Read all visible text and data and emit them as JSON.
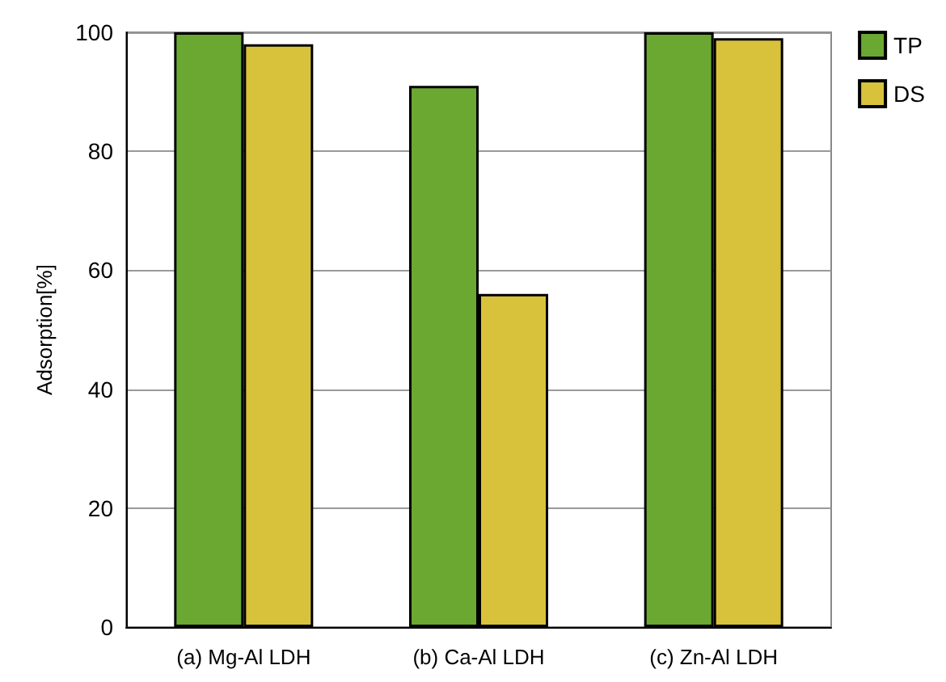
{
  "chart_data": {
    "type": "bar",
    "ylabel": "Adsorption[%]",
    "categories": [
      "(a) Mg-Al LDH",
      "(b) Ca-Al LDH",
      "(c) Zn-Al LDH"
    ],
    "series": [
      {
        "name": "TP",
        "color": "#6aa832",
        "values": [
          100,
          91,
          100
        ]
      },
      {
        "name": "DS",
        "color": "#d8c23c",
        "values": [
          98,
          56,
          99
        ]
      }
    ],
    "ylim": [
      0,
      100
    ],
    "yticks": [
      0,
      20,
      40,
      60,
      80,
      100
    ],
    "grid": "y",
    "legend": "top right"
  }
}
